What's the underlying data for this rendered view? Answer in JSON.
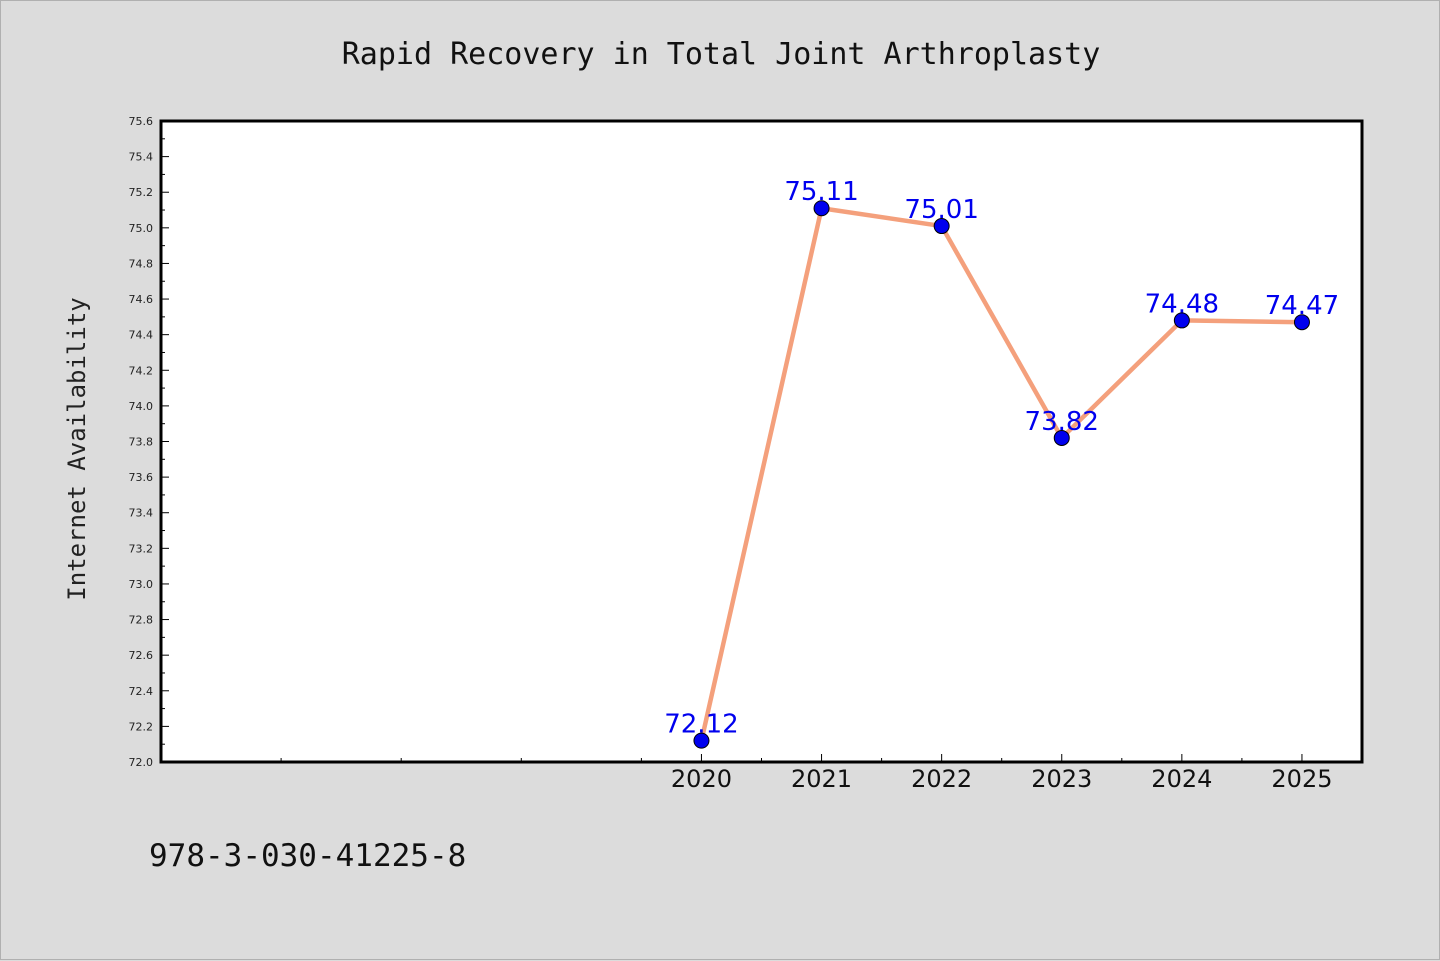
{
  "chart_data": {
    "type": "line",
    "title": "Rapid Recovery in Total Joint Arthroplasty",
    "xlabel": "",
    "ylabel": "Internet Availability",
    "x": [
      "2020",
      "2021",
      "2022",
      "2023",
      "2024",
      "2025"
    ],
    "x_axis_extent": [
      "2015.5",
      "2025.5"
    ],
    "series": [
      {
        "values": [
          72.12,
          75.11,
          75.01,
          73.82,
          74.48,
          74.47
        ]
      }
    ],
    "data_labels": [
      "72.12",
      "75.11",
      "75.01",
      "73.82",
      "74.48",
      "74.47"
    ],
    "ylim": [
      72.0,
      75.6
    ],
    "yticks": [
      "72.0",
      "72.2",
      "72.4",
      "72.6",
      "72.8",
      "73.0",
      "73.2",
      "73.4",
      "73.6",
      "73.8",
      "74.0",
      "74.2",
      "74.4",
      "74.6",
      "74.8",
      "75.0",
      "75.2",
      "75.4",
      "75.6"
    ],
    "grid": false,
    "legend": "none",
    "colors": {
      "line": "#f4a07c",
      "marker": "#0000ee",
      "label": "#0000ee",
      "figure_background": "#dcdcdc",
      "plot_background": "#ffffff"
    }
  },
  "footnote": "978-3-030-41225-8"
}
